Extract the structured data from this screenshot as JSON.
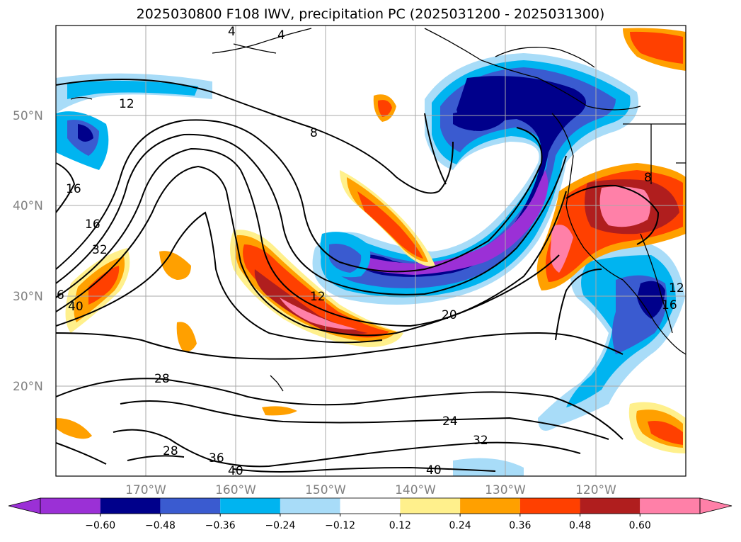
{
  "title": "2025030800 F108 IWV, precipitation PC (2025031200 - 2025031300)",
  "map": {
    "lon_range": [
      -180,
      -110
    ],
    "lat_range": [
      10,
      60
    ],
    "lat_ticks": [
      {
        "lat": 50,
        "label": "50°N"
      },
      {
        "lat": 40,
        "label": "40°N"
      },
      {
        "lat": 30,
        "label": "30°N"
      },
      {
        "lat": 20,
        "label": "20°N"
      }
    ],
    "lon_ticks": [
      {
        "lon": -170,
        "label": "170°W"
      },
      {
        "lon": -160,
        "label": "160°W"
      },
      {
        "lon": -150,
        "label": "150°W"
      },
      {
        "lon": -140,
        "label": "140°W"
      },
      {
        "lon": -130,
        "label": "130°W"
      },
      {
        "lon": -120,
        "label": "120°W"
      }
    ],
    "contour_labels": [
      "4",
      "4",
      "12",
      "8",
      "16",
      "16",
      "32",
      "6",
      "40",
      "12",
      "20",
      "28",
      "28",
      "36",
      "40",
      "24",
      "32",
      "40",
      "8",
      "16",
      "12"
    ]
  },
  "colorbar": {
    "colors": [
      "#9b30d6",
      "#00008b",
      "#3a5bd0",
      "#00b4f0",
      "#a8dcf8",
      "#ffffff",
      "#fff08c",
      "#ffa000",
      "#ff4000",
      "#b01e1e",
      "#ff80a8"
    ],
    "ticks": [
      "−0.60",
      "−0.48",
      "−0.36",
      "−0.24",
      "−0.12",
      "0.12",
      "0.24",
      "0.36",
      "0.48",
      "0.60"
    ]
  }
}
